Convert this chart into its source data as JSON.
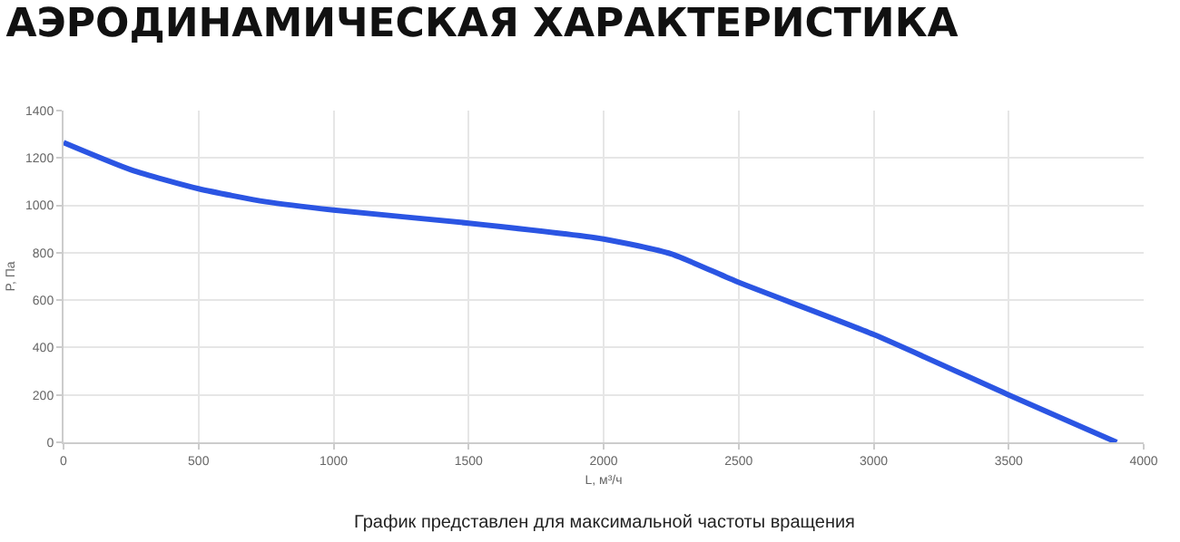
{
  "chart_data": {
    "type": "line",
    "title": "АЭРОДИНАМИЧЕСКАЯ ХАРАКТЕРИСТИКА",
    "xlabel": "L, м³/ч",
    "ylabel": "P, Па",
    "x": [
      0,
      250,
      500,
      750,
      1000,
      1500,
      2000,
      2250,
      2500,
      3000,
      3500,
      3900
    ],
    "series": [
      {
        "color": "#2b55e3",
        "values": [
          1265,
          1150,
          1070,
          1015,
          980,
          925,
          858,
          795,
          675,
          455,
          200,
          0
        ]
      }
    ],
    "xlim": [
      0,
      4000
    ],
    "xticks": [
      0,
      500,
      1000,
      1500,
      2000,
      2500,
      3000,
      3500,
      4000
    ],
    "ylim": [
      0,
      1400
    ],
    "yticks": [
      0,
      200,
      400,
      600,
      800,
      1000,
      1200,
      1400
    ],
    "grid": true,
    "legend": false,
    "marker": "none",
    "line_style": "solid",
    "annotations": [
      "График представлен для максимальной частоты вращения"
    ]
  }
}
